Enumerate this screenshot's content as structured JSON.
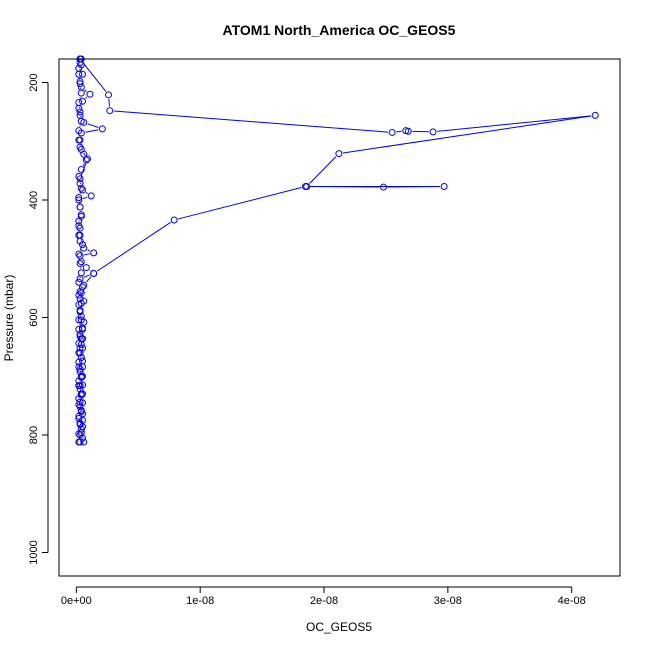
{
  "chart_data": {
    "type": "line",
    "title": "ATOM1 North_America OC_GEOS5",
    "xlabel": "OC_GEOS5",
    "ylabel": "Pressure (mbar)",
    "x_ticks": [
      0,
      1e-08,
      2e-08,
      3e-08,
      4e-08
    ],
    "x_tick_labels": [
      "0e+00",
      "1e-08",
      "2e-08",
      "3e-08",
      "4e-08"
    ],
    "y_ticks": [
      200,
      400,
      600,
      800,
      1000
    ],
    "y_tick_labels": [
      "200",
      "400",
      "600",
      "800",
      "1000"
    ],
    "xlim": [
      -1.4e-09,
      4.39e-08
    ],
    "ylim": [
      1040,
      160
    ],
    "y_reversed": true,
    "grid": false,
    "series_color": "#0000ff",
    "series": [
      {
        "points": [
          [
            3e-10,
            812
          ],
          [
            5e-10,
            805
          ],
          [
            2e-10,
            798
          ],
          [
            4e-10,
            790
          ],
          [
            3e-10,
            782
          ],
          [
            5e-10,
            775
          ],
          [
            2e-10,
            768
          ],
          [
            4e-10,
            760
          ],
          [
            3e-10,
            752
          ],
          [
            5e-10,
            745
          ],
          [
            2e-10,
            738
          ],
          [
            4e-10,
            730
          ],
          [
            3e-10,
            722
          ],
          [
            5e-10,
            715
          ],
          [
            2e-10,
            708
          ],
          [
            4e-10,
            700
          ],
          [
            3e-10,
            692
          ],
          [
            5e-10,
            684
          ],
          [
            2e-10,
            676
          ],
          [
            4e-10,
            668
          ],
          [
            3e-10,
            660
          ],
          [
            5e-10,
            652
          ],
          [
            2e-10,
            644
          ],
          [
            4e-10,
            636
          ],
          [
            3e-10,
            628
          ],
          [
            5e-10,
            620
          ],
          [
            6e-10,
            608
          ],
          [
            4e-10,
            598
          ],
          [
            3e-10,
            588
          ],
          [
            2e-10,
            578
          ],
          [
            3e-10,
            568
          ],
          [
            4e-10,
            558
          ],
          [
            6e-10,
            545
          ],
          [
            1.4e-09,
            525
          ],
          [
            8e-10,
            515
          ],
          [
            4e-10,
            505
          ],
          [
            3e-10,
            495
          ],
          [
            1.4e-09,
            490
          ],
          [
            6e-10,
            482
          ],
          [
            3e-10,
            470
          ],
          [
            2e-10,
            460
          ],
          [
            3e-10,
            448
          ],
          [
            2e-10,
            436
          ],
          [
            4e-10,
            425
          ],
          [
            3e-10,
            412
          ],
          [
            2e-10,
            400
          ],
          [
            1.2e-09,
            393
          ],
          [
            5e-10,
            383
          ],
          [
            3e-10,
            372
          ],
          [
            2e-10,
            360
          ],
          [
            4e-10,
            348
          ],
          [
            8e-10,
            332
          ],
          [
            6e-10,
            322
          ],
          [
            3e-10,
            310
          ],
          [
            2e-10,
            298
          ],
          [
            4e-10,
            286
          ],
          [
            2.1e-09,
            279
          ],
          [
            6e-10,
            268
          ],
          [
            3e-10,
            256
          ],
          [
            2e-10,
            244
          ],
          [
            5e-10,
            232
          ],
          [
            1.1e-09,
            220
          ],
          [
            4e-10,
            208
          ],
          [
            3e-10,
            198
          ],
          [
            5e-10,
            186
          ],
          [
            2e-10,
            176
          ],
          [
            3e-10,
            166
          ],
          [
            4e-10,
            160
          ]
        ]
      },
      {
        "points": [
          [
            6e-10,
            812
          ],
          [
            3e-10,
            800
          ],
          [
            5e-10,
            786
          ],
          [
            2e-10,
            772
          ],
          [
            4e-10,
            758
          ],
          [
            3e-10,
            744
          ],
          [
            5e-10,
            730
          ],
          [
            2e-10,
            716
          ],
          [
            4e-10,
            702
          ],
          [
            3e-10,
            688
          ],
          [
            5e-10,
            674
          ],
          [
            2e-10,
            660
          ],
          [
            4e-10,
            646
          ],
          [
            3e-10,
            632
          ],
          [
            5e-10,
            618
          ],
          [
            2e-10,
            604
          ],
          [
            3e-10,
            590
          ],
          [
            4e-10,
            576
          ],
          [
            2e-10,
            562
          ],
          [
            5e-10,
            548
          ],
          [
            3e-10,
            534
          ],
          [
            1.4e-09,
            525
          ],
          [
            7.9e-09,
            434
          ],
          [
            1.85e-08,
            377
          ],
          [
            2.48e-08,
            378
          ],
          [
            2.97e-08,
            377
          ],
          [
            1.86e-08,
            377
          ],
          [
            2.12e-08,
            321
          ],
          [
            4.19e-08,
            256
          ],
          [
            2.88e-08,
            284
          ],
          [
            2.68e-08,
            283
          ],
          [
            2.66e-08,
            282
          ],
          [
            2.55e-08,
            285
          ],
          [
            2.7e-09,
            248
          ],
          [
            2.6e-09,
            221
          ],
          [
            3e-10,
            160
          ]
        ]
      },
      {
        "points": [
          [
            2e-10,
            812
          ],
          [
            4e-10,
            796
          ],
          [
            3e-10,
            780
          ],
          [
            5e-10,
            764
          ],
          [
            2e-10,
            748
          ],
          [
            4e-10,
            732
          ],
          [
            3e-10,
            716
          ],
          [
            5e-10,
            700
          ],
          [
            2e-10,
            684
          ],
          [
            4e-10,
            668
          ],
          [
            3e-10,
            652
          ],
          [
            5e-10,
            636
          ],
          [
            2e-10,
            620
          ],
          [
            4e-10,
            604
          ],
          [
            3e-10,
            588
          ],
          [
            6e-10,
            572
          ],
          [
            3e-10,
            556
          ],
          [
            2e-10,
            540
          ],
          [
            4e-10,
            524
          ],
          [
            3e-10,
            508
          ],
          [
            2e-10,
            492
          ],
          [
            5e-10,
            476
          ],
          [
            3e-10,
            460
          ],
          [
            2e-10,
            444
          ],
          [
            4e-10,
            428
          ],
          [
            3e-10,
            412
          ],
          [
            2e-10,
            396
          ],
          [
            4e-10,
            380
          ],
          [
            3e-10,
            364
          ],
          [
            9e-10,
            330
          ],
          [
            4e-10,
            314
          ],
          [
            3e-10,
            298
          ],
          [
            2e-10,
            282
          ],
          [
            4e-10,
            266
          ],
          [
            3e-10,
            250
          ],
          [
            2e-10,
            234
          ],
          [
            4e-10,
            218
          ],
          [
            3e-10,
            202
          ],
          [
            2e-10,
            186
          ],
          [
            4e-10,
            170
          ],
          [
            3e-10,
            160
          ]
        ]
      }
    ]
  }
}
